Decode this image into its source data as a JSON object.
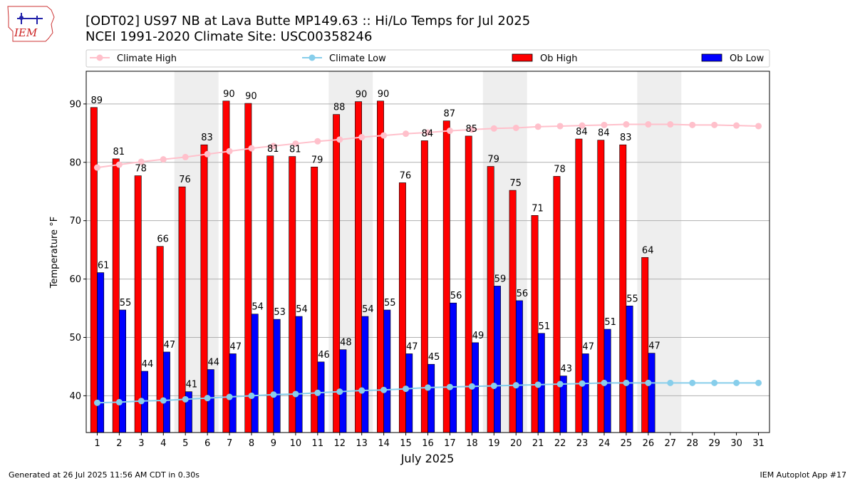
{
  "header": {
    "logo_text": "IEM",
    "title_line1": "[ODT02] US97 NB at Lava Butte MP149.63  :: Hi/Lo Temps for Jul 2025",
    "title_line2": "NCEI 1991-2020 Climate Site: USC00358246"
  },
  "footer": {
    "generated": "Generated at 26 Jul 2025 11:56 AM CDT in 0.30s",
    "app": "IEM Autoplot App #17"
  },
  "colors": {
    "ob_high": "#ff0000",
    "ob_low": "#0000ff",
    "climate_high": "#ffc0cb",
    "climate_low": "#87ceeb",
    "weekend_shade": "#eeeeee",
    "grid": "#b0b0b0"
  },
  "chart_data": {
    "type": "bar",
    "xlabel": "July 2025",
    "ylabel": "Temperature °F",
    "ylim": [
      33.7,
      95.6
    ],
    "yticks": [
      40,
      50,
      60,
      70,
      80,
      90
    ],
    "grid": "horizontal",
    "legend_position": "top",
    "categories": [
      "1",
      "2",
      "3",
      "4",
      "5",
      "6",
      "7",
      "8",
      "9",
      "10",
      "11",
      "12",
      "13",
      "14",
      "15",
      "16",
      "17",
      "18",
      "19",
      "20",
      "21",
      "22",
      "23",
      "24",
      "25",
      "26",
      "27",
      "28",
      "29",
      "30",
      "31"
    ],
    "shaded_day_pairs": [
      [
        5,
        6
      ],
      [
        12,
        13
      ],
      [
        19,
        20
      ],
      [
        26,
        27
      ]
    ],
    "series": [
      {
        "name": "Climate High",
        "type": "line",
        "values": [
          79.1,
          79.6,
          80.1,
          80.5,
          80.9,
          81.4,
          81.9,
          82.4,
          82.8,
          83.2,
          83.6,
          83.9,
          84.3,
          84.6,
          84.9,
          85.1,
          85.4,
          85.6,
          85.8,
          85.9,
          86.1,
          86.2,
          86.3,
          86.4,
          86.5,
          86.5,
          86.5,
          86.4,
          86.4,
          86.3,
          86.2
        ]
      },
      {
        "name": "Climate Low",
        "type": "line",
        "values": [
          38.8,
          38.9,
          39.1,
          39.2,
          39.4,
          39.6,
          39.8,
          40.0,
          40.2,
          40.3,
          40.5,
          40.7,
          40.9,
          41.0,
          41.2,
          41.4,
          41.5,
          41.6,
          41.7,
          41.8,
          41.9,
          42.0,
          42.1,
          42.2,
          42.2,
          42.2,
          42.2,
          42.2,
          42.2,
          42.2,
          42.2
        ]
      },
      {
        "name": "Ob High",
        "type": "bar",
        "values": [
          89.4,
          80.6,
          77.7,
          65.6,
          75.8,
          83.0,
          90.5,
          90.1,
          81.1,
          81.0,
          79.2,
          88.2,
          90.4,
          90.5,
          76.5,
          83.7,
          87.1,
          84.5,
          79.3,
          75.2,
          70.9,
          77.6,
          84.0,
          83.8,
          83.0,
          63.7,
          null,
          null,
          null,
          null,
          null
        ],
        "labels": [
          "89",
          "81",
          "78",
          "66",
          "76",
          "83",
          "90",
          "90",
          "81",
          "81",
          "79",
          "88",
          "90",
          "90",
          "76",
          "84",
          "87",
          "85",
          "79",
          "75",
          "71",
          "78",
          "84",
          "84",
          "83",
          "64",
          "",
          "",
          "",
          "",
          ""
        ]
      },
      {
        "name": "Ob Low",
        "type": "bar",
        "values": [
          61.1,
          54.7,
          44.2,
          47.5,
          40.7,
          44.5,
          47.2,
          54.0,
          53.1,
          53.6,
          45.8,
          47.9,
          53.6,
          54.7,
          47.2,
          45.4,
          55.9,
          49.1,
          58.8,
          56.3,
          50.7,
          43.4,
          47.2,
          51.4,
          55.4,
          47.3,
          null,
          null,
          null,
          null,
          null
        ],
        "labels": [
          "61",
          "55",
          "44",
          "47",
          "41",
          "44",
          "47",
          "54",
          "53",
          "54",
          "46",
          "48",
          "54",
          "55",
          "47",
          "45",
          "56",
          "49",
          "59",
          "56",
          "51",
          "43",
          "47",
          "51",
          "55",
          "47",
          "",
          "",
          "",
          "",
          ""
        ]
      }
    ]
  }
}
